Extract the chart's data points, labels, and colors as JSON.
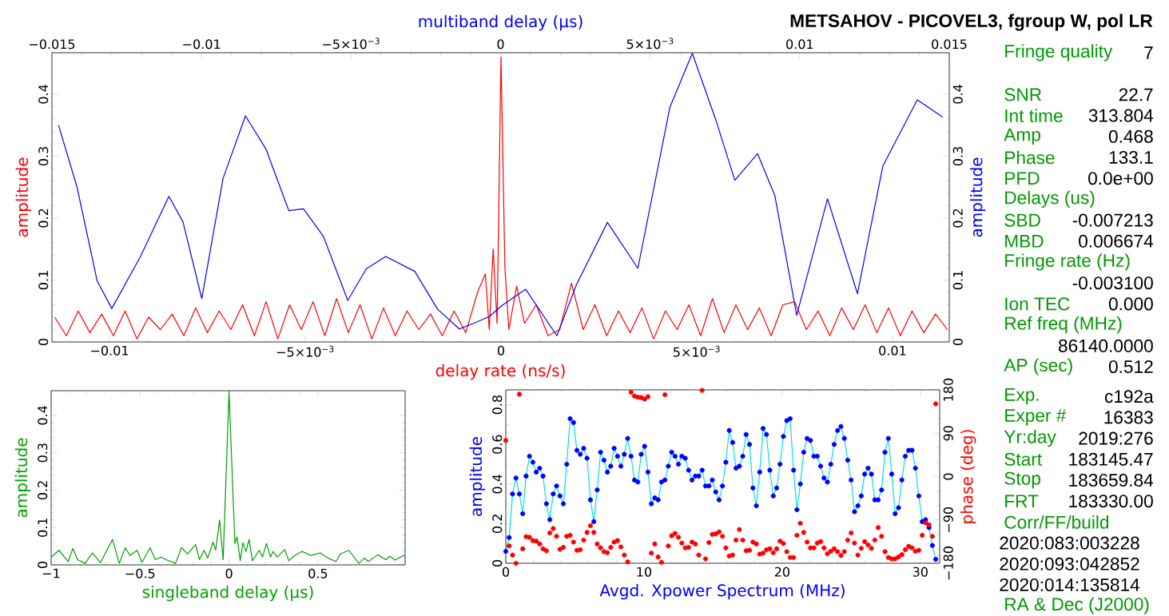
{
  "chart_data": [
    {
      "type": "line",
      "xlabel": "delay rate (ns/s)",
      "ylabel": "amplitude",
      "x2label": "multiband delay (μs)",
      "y2label": "amplitude",
      "xlim": [
        -0.01147,
        0.01145
      ],
      "ylim": [
        0,
        0.467
      ],
      "x2lim": [
        -0.015,
        0.015
      ],
      "y2lim": [
        0,
        0.467
      ],
      "xticks": [
        {
          "value": -0.01,
          "label": "−0.01"
        },
        {
          "value": -0.005,
          "label": "−5×10$^{−3}$"
        },
        0,
        {
          "value": 0.005,
          "label": "5×10$^{−3}$"
        },
        0.01
      ],
      "x2ticks": [
        {
          "value": -0.015,
          "label": "−0.015"
        },
        {
          "value": -0.01,
          "label": "−0.01"
        },
        {
          "value": -0.005,
          "label": "−5×10$^{−3}$"
        },
        0,
        {
          "value": 0.005,
          "label": "5×10$^{−3}$"
        },
        0.01,
        0.015
      ],
      "yticks": [
        0,
        0.1,
        0.2,
        0.3,
        0.4
      ],
      "y2ticks": [
        0,
        0.1,
        0.2,
        0.3,
        0.4
      ],
      "series": [
        {
          "color": "#ff0000",
          "x": [
            -0.0114,
            -0.0111,
            -0.0108,
            -0.0105,
            -0.0102,
            -0.0099,
            -0.0096,
            -0.0093,
            -0.009,
            -0.0087,
            -0.0084,
            -0.0081,
            -0.0078,
            -0.0075,
            -0.0072,
            -0.0069,
            -0.0066,
            -0.0063,
            -0.006,
            -0.0057,
            -0.0054,
            -0.0051,
            -0.0048,
            -0.0045,
            -0.0042,
            -0.0039,
            -0.0036,
            -0.0033,
            -0.003,
            -0.0027,
            -0.0024,
            -0.0021,
            -0.0018,
            -0.0015,
            -0.0012,
            -0.0009,
            -0.0006,
            -0.0004,
            -0.0003,
            -0.0002,
            -0.0001,
            0,
            0.0001,
            0.0002,
            0.0004,
            0.0006,
            0.0009,
            0.0012,
            0.0015,
            0.0018,
            0.0021,
            0.0024,
            0.0027,
            0.003,
            0.0033,
            0.0036,
            0.0039,
            0.0042,
            0.0045,
            0.0048,
            0.0051,
            0.0054,
            0.0057,
            0.006,
            0.0063,
            0.0066,
            0.0069,
            0.0072,
            0.0075,
            0.0078,
            0.0081,
            0.0084,
            0.0087,
            0.009,
            0.0093,
            0.0096,
            0.0099,
            0.0102,
            0.0105,
            0.0108,
            0.0111,
            0.0114
          ],
          "values": [
            0.04,
            0.01,
            0.05,
            0.015,
            0.045,
            0.01,
            0.05,
            0.005,
            0.04,
            0.02,
            0.045,
            0.01,
            0.055,
            0.015,
            0.05,
            0.02,
            0.06,
            0.01,
            0.065,
            0.005,
            0.06,
            0.02,
            0.065,
            0.01,
            0.07,
            0.015,
            0.06,
            0.005,
            0.055,
            0.01,
            0.05,
            0.02,
            0.045,
            0.01,
            0.05,
            0.015,
            0.08,
            0.11,
            0.02,
            0.15,
            0.03,
            0.46,
            0.12,
            0.02,
            0.09,
            0.03,
            0.06,
            0.01,
            0.02,
            0.095,
            0.02,
            0.06,
            0.01,
            0.05,
            0.015,
            0.055,
            0.005,
            0.05,
            0.02,
            0.06,
            0.01,
            0.07,
            0.015,
            0.06,
            0.02,
            0.055,
            0.01,
            0.06,
            0.065,
            0.02,
            0.05,
            0.01,
            0.055,
            0.02,
            0.06,
            0.015,
            0.055,
            0.01,
            0.05,
            0.015,
            0.045,
            0.02
          ]
        },
        {
          "color": "#0000ff",
          "axis": "x2",
          "x": [
            -0.01478,
            -0.01416,
            -0.01349,
            -0.013,
            -0.01205,
            -0.01109,
            -0.01062,
            -0.00999,
            -0.00928,
            -0.00853,
            -0.00784,
            -0.00708,
            -0.00659,
            -0.00592,
            -0.00511,
            -0.00449,
            -0.00384,
            -0.00287,
            -0.00211,
            -0.00138,
            -0.00086,
            -0.00038,
            5e-05,
            0.00084,
            0.00188,
            0.00254,
            0.00357,
            0.00459,
            0.00566,
            0.00641,
            0.00722,
            0.00783,
            0.00859,
            0.00917,
            0.0099,
            0.01093,
            0.01193,
            0.01278,
            0.01393,
            0.01478
          ],
          "values": [
            0.35,
            0.25,
            0.099,
            0.054,
            0.137,
            0.235,
            0.194,
            0.07,
            0.264,
            0.365,
            0.311,
            0.212,
            0.215,
            0.17,
            0.067,
            0.118,
            0.138,
            0.114,
            0.053,
            0.021,
            0.031,
            0.041,
            0.059,
            0.085,
            0.01,
            0.093,
            0.193,
            0.119,
            0.379,
            0.466,
            0.355,
            0.261,
            0.304,
            0.236,
            0.043,
            0.231,
            0.078,
            0.284,
            0.391,
            0.363
          ]
        }
      ]
    },
    {
      "type": "line",
      "xlabel": "singleband delay (μs)",
      "ylabel": "amplitude",
      "xlim": [
        -1,
        0.99
      ],
      "ylim": [
        0,
        0.466
      ],
      "xticks": [
        {
          "value": -1,
          "label": "−1"
        },
        {
          "value": -0.5,
          "label": "−0.5"
        },
        0,
        0.5
      ],
      "yticks": [
        0,
        0.1,
        0.2,
        0.3,
        0.4
      ],
      "series": [
        {
          "color": "#00a000",
          "x": [
            -1,
            -0.956,
            -0.904,
            -0.878,
            -0.851,
            -0.809,
            -0.768,
            -0.723,
            -0.655,
            -0.617,
            -0.583,
            -0.557,
            -0.517,
            -0.489,
            -0.444,
            -0.414,
            -0.384,
            -0.354,
            -0.301,
            -0.267,
            -0.233,
            -0.188,
            -0.166,
            -0.14,
            -0.12,
            -0.09,
            -0.075,
            -0.053,
            -0.033,
            0,
            0.033,
            0.045,
            0.063,
            0.078,
            0.095,
            0.113,
            0.131,
            0.17,
            0.188,
            0.211,
            0.233,
            0.248,
            0.271,
            0.313,
            0.336,
            0.369,
            0.411,
            0.459,
            0.512,
            0.557,
            0.602,
            0.625,
            0.673,
            0.73,
            0.761,
            0.783,
            0.836,
            0.881,
            0.904,
            0.934,
            0.979,
            0.99
          ],
          "values": [
            0.021,
            0.039,
            0.009,
            0.044,
            0.014,
            0.004,
            0.032,
            0.006,
            0.068,
            0.004,
            0.046,
            0.025,
            0.039,
            0.007,
            0.046,
            0.014,
            0.021,
            0.014,
            0.004,
            0.046,
            0.029,
            0.054,
            0.014,
            0.039,
            0.018,
            0.061,
            0.039,
            0.12,
            0.014,
            0.464,
            0.057,
            0.075,
            0.011,
            0.059,
            0.036,
            0.068,
            0.011,
            0.039,
            0.021,
            0.057,
            0.021,
            0.036,
            0.021,
            0.041,
            0.011,
            0.025,
            0.036,
            0.025,
            0.032,
            0.018,
            0.009,
            0.029,
            0.039,
            0.004,
            0.018,
            0.009,
            0.027,
            0.014,
            0.023,
            0.013,
            0.025,
            0.023
          ]
        }
      ]
    },
    {
      "type": "line",
      "xlabel": "Avgd. Xpower Spectrum (MHz)",
      "ylabel": "amplitude",
      "y2label": "phase (deg)",
      "xlim": [
        0,
        31.4
      ],
      "ylim": [
        0,
        0.875
      ],
      "y2lim": [
        -180,
        180
      ],
      "xticks": [
        0,
        10,
        20,
        30
      ],
      "yticks": [
        0,
        0.2,
        0.4,
        0.6,
        0.8
      ],
      "y2ticks": [
        {
          "value": -180,
          "label": "−180"
        },
        {
          "value": -90,
          "label": "−90"
        },
        0,
        90,
        180
      ],
      "x": [
        0,
        0.245,
        0.49,
        0.735,
        0.98,
        1.225,
        1.47,
        1.715,
        1.96,
        2.205,
        2.45,
        2.695,
        2.94,
        3.185,
        3.43,
        3.675,
        3.92,
        4.165,
        4.41,
        4.655,
        4.9,
        5.145,
        5.39,
        5.635,
        5.88,
        6.125,
        6.37,
        6.615,
        6.86,
        7.105,
        7.35,
        7.595,
        7.84,
        8.085,
        8.33,
        8.575,
        8.82,
        9.065,
        9.31,
        9.555,
        9.8,
        10.045,
        10.29,
        10.535,
        10.78,
        11.025,
        11.27,
        11.515,
        11.76,
        12.005,
        12.25,
        12.495,
        12.74,
        12.985,
        13.23,
        13.475,
        13.72,
        13.965,
        14.21,
        14.455,
        14.7,
        14.945,
        15.19,
        15.435,
        15.68,
        15.925,
        16.17,
        16.415,
        16.66,
        16.905,
        17.15,
        17.395,
        17.64,
        17.885,
        18.13,
        18.375,
        18.62,
        18.865,
        19.11,
        19.355,
        19.6,
        19.845,
        20.09,
        20.335,
        20.58,
        20.825,
        21.07,
        21.315,
        21.56,
        21.805,
        22.05,
        22.295,
        22.54,
        22.785,
        23.03,
        23.275,
        23.52,
        23.765,
        24.01,
        24.255,
        24.5,
        24.745,
        24.99,
        25.235,
        25.48,
        25.725,
        25.97,
        26.215,
        26.46,
        26.705,
        26.95,
        27.195,
        27.44,
        27.685,
        27.93,
        28.175,
        28.42,
        28.665,
        28.91,
        29.155,
        29.4,
        29.645,
        29.89,
        30.135,
        30.38,
        30.625,
        30.87,
        31.115
      ],
      "series": [
        {
          "color": "#00e0e8",
          "values": [
            0.06,
            0.13,
            0.35,
            0.43,
            0.35,
            0.25,
            0.44,
            0.54,
            0.51,
            0.46,
            0.48,
            0.44,
            0.3,
            0.22,
            0.35,
            0.39,
            0.34,
            0.3,
            0.5,
            0.73,
            0.71,
            0.57,
            0.55,
            0.58,
            0.53,
            0.32,
            0.21,
            0.37,
            0.56,
            0.52,
            0.46,
            0.49,
            0.58,
            0.54,
            0.49,
            0.55,
            0.63,
            0.54,
            0.42,
            0.41,
            0.55,
            0.59,
            0.46,
            0.3,
            0.33,
            0.32,
            0.41,
            0.42,
            0.49,
            0.56,
            0.54,
            0.5,
            0.54,
            0.53,
            0.47,
            0.42,
            0.44,
            0.44,
            0.47,
            0.39,
            0.39,
            0.42,
            0.36,
            0.32,
            0.39,
            0.51,
            0.67,
            0.61,
            0.48,
            0.49,
            0.54,
            0.65,
            0.6,
            0.38,
            0.29,
            0.46,
            0.68,
            0.65,
            0.47,
            0.34,
            0.38,
            0.5,
            0.64,
            0.72,
            0.73,
            0.47,
            0.27,
            0.4,
            0.56,
            0.63,
            0.62,
            0.54,
            0.54,
            0.49,
            0.43,
            0.41,
            0.5,
            0.6,
            0.67,
            0.69,
            0.63,
            0.52,
            0.42,
            0.26,
            0.29,
            0.34,
            0.45,
            0.48,
            0.45,
            0.32,
            0.32,
            0.37,
            0.56,
            0.63,
            0.45,
            0.25,
            0.28,
            0.42,
            0.54,
            0.57,
            0.57,
            0.48,
            0.34,
            0.21,
            0.22,
            0.18,
            0.09,
            0.02
          ]
        },
        {
          "type": "scatter",
          "marker": "circle",
          "color": "#0000ff",
          "values": [
            0.06,
            0.13,
            0.35,
            0.43,
            0.35,
            0.25,
            0.44,
            0.54,
            0.51,
            0.46,
            0.48,
            0.44,
            0.3,
            0.22,
            0.35,
            0.39,
            0.34,
            0.3,
            0.5,
            0.73,
            0.71,
            0.57,
            0.55,
            0.58,
            0.53,
            0.32,
            0.21,
            0.37,
            0.56,
            0.52,
            0.46,
            0.49,
            0.58,
            0.54,
            0.49,
            0.55,
            0.63,
            0.54,
            0.42,
            0.41,
            0.55,
            0.59,
            0.46,
            0.3,
            0.33,
            0.32,
            0.41,
            0.42,
            0.49,
            0.56,
            0.54,
            0.5,
            0.54,
            0.53,
            0.47,
            0.42,
            0.44,
            0.44,
            0.47,
            0.39,
            0.39,
            0.42,
            0.36,
            0.32,
            0.39,
            0.51,
            0.67,
            0.61,
            0.48,
            0.49,
            0.54,
            0.65,
            0.6,
            0.38,
            0.29,
            0.46,
            0.68,
            0.65,
            0.47,
            0.34,
            0.38,
            0.5,
            0.64,
            0.72,
            0.73,
            0.47,
            0.27,
            0.4,
            0.56,
            0.63,
            0.62,
            0.54,
            0.54,
            0.49,
            0.43,
            0.41,
            0.5,
            0.6,
            0.67,
            0.69,
            0.63,
            0.52,
            0.42,
            0.26,
            0.29,
            0.34,
            0.45,
            0.48,
            0.45,
            0.32,
            0.32,
            0.37,
            0.56,
            0.63,
            0.45,
            0.25,
            0.28,
            0.42,
            0.54,
            0.57,
            0.57,
            0.48,
            0.34,
            0.21,
            0.22,
            0.18,
            0.09,
            0.02
          ]
        },
        {
          "type": "scatter",
          "marker": "circle",
          "color": "#ff0000",
          "axis": "y2",
          "values": [
            75,
            -144,
            -163,
            -180,
            171,
            -150,
            -125,
            -126,
            -133,
            -134,
            -140,
            -150,
            -154,
            -117,
            -108,
            -124,
            -151,
            -147,
            -124,
            -122,
            -136,
            -153,
            -152,
            -132,
            -116,
            -102,
            -116,
            -140,
            -148,
            -156,
            -158,
            -147,
            -136,
            -133,
            -146,
            -163,
            -177,
            175,
            167,
            165,
            164,
            161,
            166,
            -159,
            -140,
            -167,
            -178,
            170,
            -144,
            -123,
            -118,
            -126,
            -138,
            -148,
            -147,
            -136,
            -140,
            -163,
            179,
            -171,
            -137,
            -120,
            -119,
            -115,
            -124,
            -148,
            -165,
            -163,
            -132,
            -110,
            -132,
            -154,
            -153,
            -136,
            -140,
            -161,
            -159,
            -152,
            -150,
            -158,
            -150,
            -134,
            -139,
            -156,
            -168,
            -168,
            -122,
            -97,
            -116,
            -136,
            -148,
            -148,
            -138,
            -135,
            -148,
            -160,
            -155,
            -150,
            -156,
            -164,
            -156,
            -132,
            -117,
            -138,
            -163,
            -149,
            -135,
            -142,
            -149,
            -132,
            -106,
            -124,
            -156,
            -168,
            -171,
            -171,
            -167,
            -162,
            -152,
            -145,
            -148,
            -155,
            -153,
            -122,
            -96,
            -100,
            -124,
            151
          ]
        }
      ]
    },
    {
      "type": "other",
      "title": "METSAHOV - PICOVEL3, fgroup W, pol LR",
      "annotations": [
        "Fringe quality",
        "7",
        "SNR",
        "22.7",
        "Int time",
        "313.804",
        "Amp",
        "0.468",
        "Phase",
        "133.1",
        "PFD",
        "0.0e+00",
        "Delays (us)",
        "SBD",
        "-0.007213",
        "MBD",
        "0.006674",
        "Fringe rate (Hz)",
        "-0.003100",
        "Ion TEC",
        "0.000",
        "Ref freq (MHz)",
        "86140.0000",
        "AP (sec)",
        "0.512",
        "Exp.",
        "c192a",
        "Exper #",
        "16383",
        "Yr:day",
        "2019:276",
        "Start",
        "183145.47",
        "Stop",
        "183659.84",
        "FRT",
        "183330.00",
        "Corr/FF/build",
        "2020:083:003228",
        "2020:093:042852",
        "2020:014:135814",
        "RA & Dec (J2000)"
      ]
    }
  ]
}
